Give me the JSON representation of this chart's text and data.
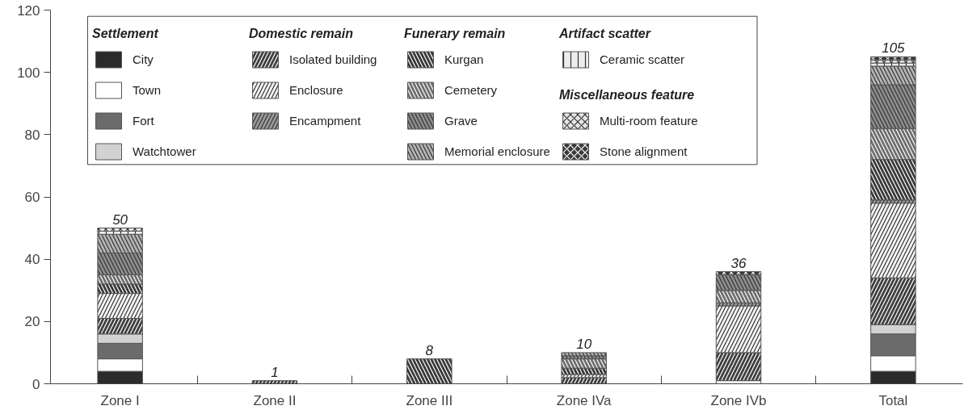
{
  "chart_data": {
    "type": "bar",
    "stacked": true,
    "categories": [
      "Zone I",
      "Zone II",
      "Zone III",
      "Zone IVa",
      "Zone IVb",
      "Total"
    ],
    "series": [
      {
        "name": "City",
        "color": "#2b2b2b",
        "values": [
          4,
          0,
          0,
          0,
          0,
          4
        ]
      },
      {
        "name": "Town",
        "color": "#ffffff",
        "values": [
          4,
          0,
          0,
          0,
          1,
          5
        ]
      },
      {
        "name": "Fort",
        "color": "#6b6b6b",
        "values": [
          5,
          0,
          0,
          0,
          0,
          7
        ]
      },
      {
        "name": "Watchtower",
        "color": "#d2d2d2",
        "values": [
          3,
          0,
          0,
          0,
          0,
          3
        ]
      },
      {
        "name": "Isolated building",
        "color": "#404040",
        "values": [
          5,
          1,
          0,
          2,
          9,
          15
        ]
      },
      {
        "name": "Enclosure",
        "color": "#f4f4f4",
        "values": [
          8,
          0,
          0,
          1,
          15,
          24
        ]
      },
      {
        "name": "Encampment",
        "color": "#9a9a9a",
        "values": [
          0,
          0,
          0,
          0,
          1,
          1
        ]
      },
      {
        "name": "Kurgan",
        "color": "#3a3a3a",
        "values": [
          3,
          0,
          8,
          2,
          0,
          13
        ]
      },
      {
        "name": "Cemetery",
        "color": "#6e6e6e",
        "values": [
          3,
          0,
          0,
          3,
          4,
          10
        ]
      },
      {
        "name": "Grave",
        "color": "#8c8c8c",
        "values": [
          7,
          0,
          0,
          1,
          5,
          14
        ]
      },
      {
        "name": "Memorial enclosure",
        "color": "#b4b4b4",
        "values": [
          6,
          0,
          0,
          1,
          0,
          6
        ]
      },
      {
        "name": "Ceramic scatter",
        "color": "#ececec",
        "values": [
          1,
          0,
          0,
          0,
          0,
          1
        ]
      },
      {
        "name": "Multi-room feature",
        "color": "#e6e6e6",
        "values": [
          1,
          0,
          0,
          0,
          0,
          1
        ]
      },
      {
        "name": "Stone alignment",
        "color": "#3a3a3a",
        "values": [
          0,
          0,
          0,
          0,
          1,
          1
        ]
      }
    ],
    "totals": [
      "50",
      "1",
      "8",
      "10",
      "36",
      "105"
    ],
    "annotations": [
      "Settlement",
      "Domestic remain",
      "Funerary remain",
      "Artifact scatter",
      "Miscellaneous feature"
    ],
    "ylim": [
      0,
      120
    ],
    "yticks": [
      0,
      20,
      40,
      60,
      80,
      100,
      120
    ],
    "grid": false,
    "legend": "top left"
  }
}
